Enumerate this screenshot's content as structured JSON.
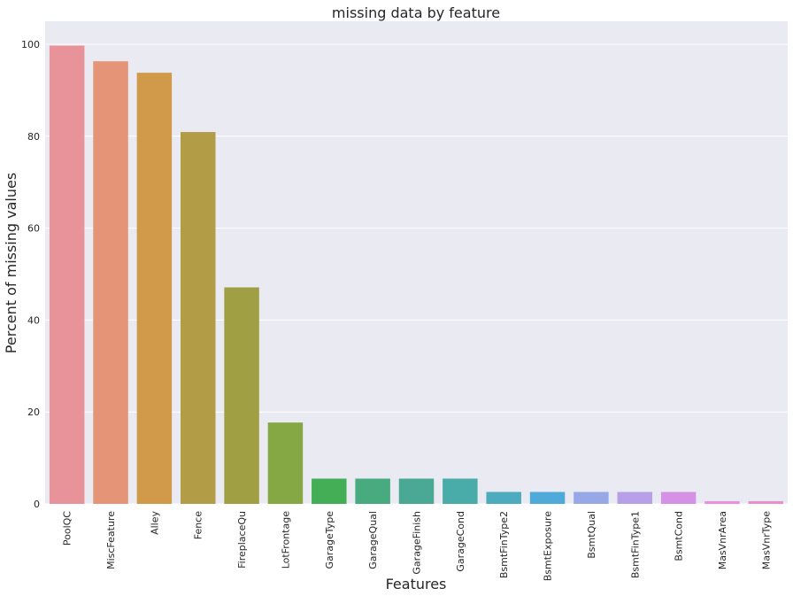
{
  "chart_data": {
    "type": "bar",
    "title": "missing data by feature",
    "xlabel": "Features",
    "ylabel": "Percent of missing values",
    "categories": [
      "PoolQC",
      "MiscFeature",
      "Alley",
      "Fence",
      "FireplaceQu",
      "LotFrontage",
      "GarageType",
      "GarageQual",
      "GarageFinish",
      "GarageCond",
      "BsmtFinType2",
      "BsmtExposure",
      "BsmtQual",
      "BsmtFinType1",
      "BsmtCond",
      "MasVnrArea",
      "MasVnrType"
    ],
    "values": [
      99.7,
      96.3,
      93.8,
      80.9,
      47.1,
      17.7,
      5.5,
      5.5,
      5.5,
      5.5,
      2.6,
      2.6,
      2.6,
      2.6,
      2.6,
      0.6,
      0.6
    ],
    "colors": [
      "#e8929a",
      "#e69477",
      "#d1994a",
      "#b39c46",
      "#a19f44",
      "#85a844",
      "#44ae57",
      "#48ab80",
      "#4aa994",
      "#4aaca8",
      "#4cacbd",
      "#4fa9d9",
      "#98a8e6",
      "#b7a0e7",
      "#d491e6",
      "#ea91de",
      "#ea8fcd"
    ],
    "yticks": [
      0,
      20,
      40,
      60,
      80,
      100
    ],
    "ylim": [
      0,
      105
    ],
    "grid": true,
    "legend": false
  }
}
